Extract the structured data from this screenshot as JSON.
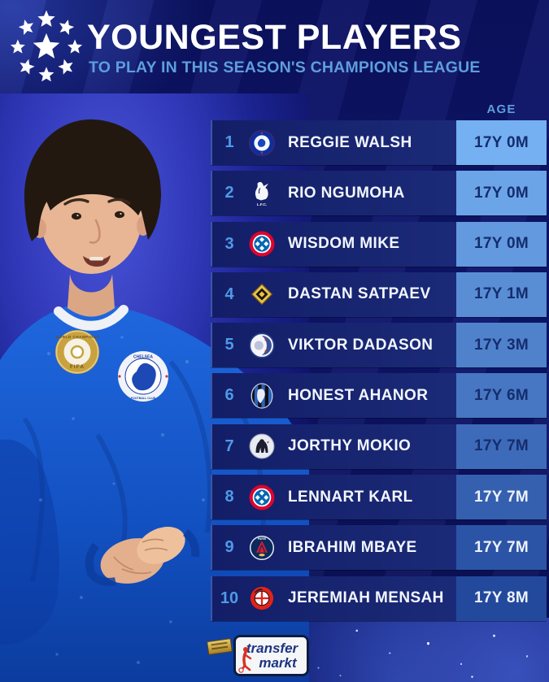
{
  "header": {
    "logo": "uefa-champions-league-starball",
    "title": "YOUNGEST PLAYERS",
    "subtitle": "TO PLAY IN THIS SEASON'S CHAMPIONS LEAGUE"
  },
  "chart_data": {
    "type": "table",
    "title": "YOUNGEST PLAYERS",
    "subtitle": "TO PLAY IN THIS SEASON'S CHAMPIONS LEAGUE",
    "columns": [
      "rank",
      "club",
      "player",
      "age"
    ],
    "age_column_header": "AGE",
    "age_text_switch_rank": 8,
    "rows": [
      {
        "rank": "1",
        "club": "Chelsea FC",
        "crest": "chelsea",
        "crest_text": "",
        "player": "REGGIE WALSH",
        "age": "17Y 0M"
      },
      {
        "rank": "2",
        "club": "Liverpool FC",
        "crest": "liverpool",
        "crest_text": "L.F.C.",
        "player": "RIO NGUMOHA",
        "age": "17Y 0M"
      },
      {
        "rank": "3",
        "club": "Bayern Munich",
        "crest": "bayern",
        "crest_text": "",
        "player": "WISDOM MIKE",
        "age": "17Y 0M"
      },
      {
        "rank": "4",
        "club": "Kairat Almaty",
        "crest": "kairat",
        "crest_text": "",
        "player": "DASTAN SATPAEV",
        "age": "17Y 1M"
      },
      {
        "rank": "5",
        "club": "FC Copenhagen",
        "crest": "copenhagen",
        "crest_text": "",
        "player": "VIKTOR DADASON",
        "age": "17Y 3M"
      },
      {
        "rank": "6",
        "club": "Atalanta BC",
        "crest": "atalanta",
        "crest_text": "",
        "player": "HONEST AHANOR",
        "age": "17Y 6M"
      },
      {
        "rank": "7",
        "club": "Ajax Amsterdam",
        "crest": "ajax",
        "crest_text": "",
        "player": "JORTHY MOKIO",
        "age": "17Y 7M"
      },
      {
        "rank": "8",
        "club": "Bayern Munich",
        "crest": "bayern",
        "crest_text": "",
        "player": "LENNART KARL",
        "age": "17Y 7M"
      },
      {
        "rank": "9",
        "club": "Paris Saint-Germain",
        "crest": "psg",
        "crest_text": "PARIS",
        "player": "IBRAHIM MBAYE",
        "age": "17Y 7M"
      },
      {
        "rank": "10",
        "club": "Bayer Leverkusen",
        "crest": "leverkusen",
        "crest_text": "",
        "player": "JEREMIAH MENSAH",
        "age": "17Y 8M"
      }
    ]
  },
  "photo": {
    "description": "young Chelsea player in blue kit",
    "badge_line1": "WORLD CHAMPIONS",
    "badge_line2": "FIFA",
    "crest_text_top": "CHELSEA",
    "crest_text_bottom": "FOOTBALL CLUB"
  },
  "footer": {
    "brand_top": "transfer",
    "brand_bottom": "markt"
  },
  "colors": {
    "accent_light_blue": "#5e9edc",
    "rank_blue": "#4f9ae8",
    "row_gradient_left": "#131e67",
    "row_gradient_right": "#1e2f7e",
    "age_cell_top": "#74b0f2",
    "age_cell_bottom": "#23499c",
    "age_text_dark": "#152d6e",
    "age_text_light": "#edf2fb",
    "tm_blue": "#1e3480",
    "tm_red": "#d93025"
  }
}
